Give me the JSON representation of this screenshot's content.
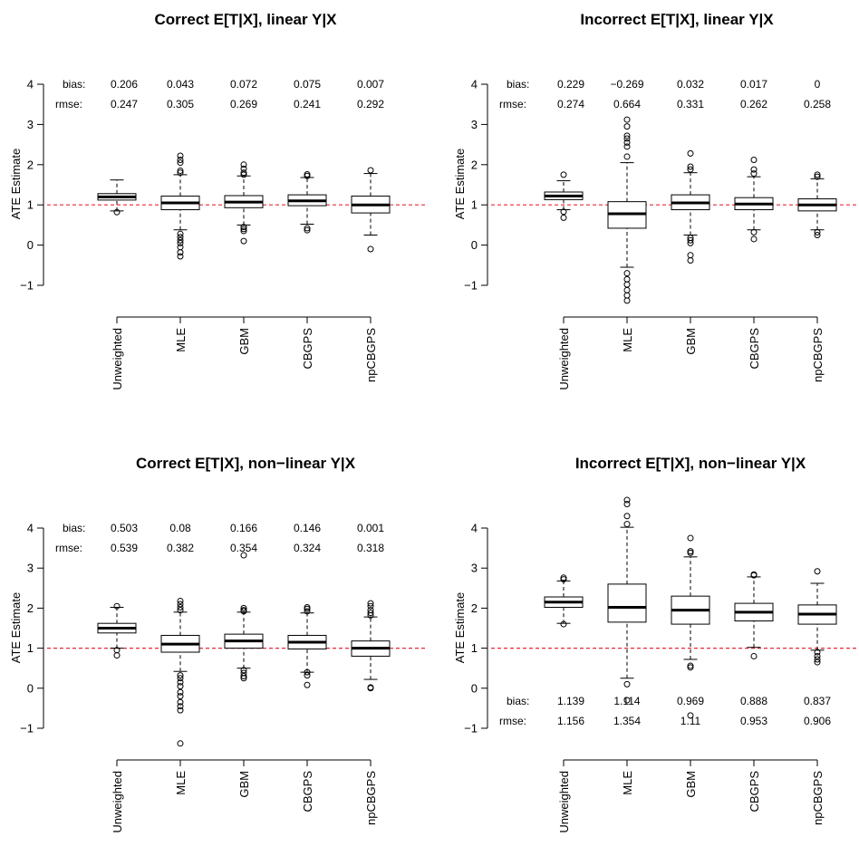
{
  "chart_data": [
    {
      "type": "box",
      "title": "Correct E[T|X], linear Y|X",
      "ylabel": "ATE Estimate",
      "ylim": [
        -1,
        4
      ],
      "yticks": [
        -1,
        0,
        1,
        2,
        3,
        4
      ],
      "reference_line": 1,
      "reference_color": "#e8283c",
      "stats_position": "top",
      "bias_label": "bias:",
      "rmse_label": "rmse:",
      "categories": [
        "Unweighted",
        "MLE",
        "GBM",
        "CBGPS",
        "npCBGPS"
      ],
      "bias": [
        "0.206",
        "0.043",
        "0.072",
        "0.075",
        "0.007"
      ],
      "rmse": [
        "0.247",
        "0.305",
        "0.269",
        "0.241",
        "0.292"
      ],
      "boxes": [
        {
          "whisker_low": 0.85,
          "q1": 1.12,
          "median": 1.2,
          "q3": 1.28,
          "whisker_high": 1.62,
          "outliers": [
            0.82
          ]
        },
        {
          "whisker_low": 0.38,
          "q1": 0.88,
          "median": 1.05,
          "q3": 1.22,
          "whisker_high": 1.75,
          "outliers": [
            -0.28,
            -0.18,
            -0.05,
            0.05,
            0.12,
            0.2,
            0.28,
            1.8,
            1.85,
            2.05,
            2.12,
            2.22
          ]
        },
        {
          "whisker_low": 0.5,
          "q1": 0.93,
          "median": 1.07,
          "q3": 1.23,
          "whisker_high": 1.72,
          "outliers": [
            0.1,
            0.35,
            0.4,
            0.45,
            1.75,
            1.8,
            1.9,
            2.0
          ]
        },
        {
          "whisker_low": 0.52,
          "q1": 0.98,
          "median": 1.1,
          "q3": 1.25,
          "whisker_high": 1.68,
          "outliers": [
            0.37,
            0.42,
            1.72,
            1.76
          ]
        },
        {
          "whisker_low": 0.25,
          "q1": 0.8,
          "median": 1.0,
          "q3": 1.22,
          "whisker_high": 1.78,
          "outliers": [
            -0.1,
            1.86
          ]
        }
      ]
    },
    {
      "type": "box",
      "title": "Incorrect E[T|X], linear Y|X",
      "ylabel": "ATE Estimate",
      "ylim": [
        -1,
        4
      ],
      "yticks": [
        -1,
        0,
        1,
        2,
        3,
        4
      ],
      "reference_line": 1,
      "reference_color": "#e8283c",
      "stats_position": "top",
      "bias_label": "bias:",
      "rmse_label": "rmse:",
      "categories": [
        "Unweighted",
        "MLE",
        "GBM",
        "CBGPS",
        "npCBGPS"
      ],
      "bias": [
        "0.229",
        "−0.269",
        "0.032",
        "0.017",
        "0"
      ],
      "rmse": [
        "0.274",
        "0.664",
        "0.331",
        "0.262",
        "0.258"
      ],
      "boxes": [
        {
          "whisker_low": 0.88,
          "q1": 1.13,
          "median": 1.22,
          "q3": 1.32,
          "whisker_high": 1.6,
          "outliers": [
            0.68,
            0.83,
            1.75
          ]
        },
        {
          "whisker_low": -0.55,
          "q1": 0.42,
          "median": 0.78,
          "q3": 1.08,
          "whisker_high": 2.05,
          "outliers": [
            -1.38,
            -1.25,
            -1.12,
            -0.98,
            -0.85,
            -0.7,
            2.2,
            2.45,
            2.55,
            2.65,
            2.72,
            2.95,
            3.12
          ]
        },
        {
          "whisker_low": 0.25,
          "q1": 0.88,
          "median": 1.05,
          "q3": 1.25,
          "whisker_high": 1.8,
          "outliers": [
            -0.38,
            -0.25,
            0.05,
            0.12,
            0.18,
            1.88,
            1.95,
            2.28
          ]
        },
        {
          "whisker_low": 0.38,
          "q1": 0.88,
          "median": 1.02,
          "q3": 1.18,
          "whisker_high": 1.7,
          "outliers": [
            0.15,
            0.32,
            1.78,
            1.88,
            2.12
          ]
        },
        {
          "whisker_low": 0.38,
          "q1": 0.85,
          "median": 1.0,
          "q3": 1.15,
          "whisker_high": 1.65,
          "outliers": [
            0.25,
            0.32,
            1.7,
            1.75
          ]
        }
      ]
    },
    {
      "type": "box",
      "title": "Correct E[T|X], non−linear Y|X",
      "ylabel": "ATE Estimate",
      "ylim": [
        -1,
        4
      ],
      "yticks": [
        -1,
        0,
        1,
        2,
        3,
        4
      ],
      "reference_line": 1,
      "reference_color": "#e8283c",
      "stats_position": "top",
      "bias_label": "bias:",
      "rmse_label": "rmse:",
      "categories": [
        "Unweighted",
        "MLE",
        "GBM",
        "CBGPS",
        "npCBGPS"
      ],
      "bias": [
        "0.503",
        "0.08",
        "0.166",
        "0.146",
        "0.001"
      ],
      "rmse": [
        "0.539",
        "0.382",
        "0.354",
        "0.324",
        "0.318"
      ],
      "boxes": [
        {
          "whisker_low": 1.0,
          "q1": 1.38,
          "median": 1.5,
          "q3": 1.62,
          "whisker_high": 2.02,
          "outliers": [
            0.82,
            0.95,
            2.05
          ]
        },
        {
          "whisker_low": 0.42,
          "q1": 0.9,
          "median": 1.1,
          "q3": 1.32,
          "whisker_high": 1.9,
          "outliers": [
            -1.38,
            -0.55,
            -0.45,
            -0.35,
            -0.2,
            -0.1,
            0.05,
            0.15,
            0.25,
            0.32,
            1.95,
            2.02,
            2.1,
            2.18
          ]
        },
        {
          "whisker_low": 0.5,
          "q1": 1.0,
          "median": 1.18,
          "q3": 1.35,
          "whisker_high": 1.9,
          "outliers": [
            0.25,
            0.3,
            0.38,
            0.45,
            1.92,
            1.95,
            2.0,
            3.32
          ]
        },
        {
          "whisker_low": 0.4,
          "q1": 0.98,
          "median": 1.15,
          "q3": 1.32,
          "whisker_high": 1.88,
          "outliers": [
            0.08,
            0.32,
            0.4,
            1.92,
            1.98,
            2.02
          ]
        },
        {
          "whisker_low": 0.22,
          "q1": 0.8,
          "median": 1.0,
          "q3": 1.18,
          "whisker_high": 1.78,
          "outliers": [
            0.0,
            0.02,
            1.82,
            1.88,
            1.95,
            2.05,
            2.12
          ]
        }
      ]
    },
    {
      "type": "box",
      "title": "Incorrect E[T|X], non−linear Y|X",
      "ylabel": "ATE Estimate",
      "ylim": [
        -1,
        4
      ],
      "yticks": [
        -1,
        0,
        1,
        2,
        3,
        4
      ],
      "reference_line": 1,
      "reference_color": "#e8283c",
      "stats_position": "bottom",
      "bias_label": "bias:",
      "rmse_label": "rmse:",
      "categories": [
        "Unweighted",
        "MLE",
        "GBM",
        "CBGPS",
        "npCBGPS"
      ],
      "bias": [
        "1.139",
        "1.114",
        "0.969",
        "0.888",
        "0.837"
      ],
      "rmse": [
        "1.156",
        "1.354",
        "1.11",
        "0.953",
        "0.906"
      ],
      "boxes": [
        {
          "whisker_low": 1.62,
          "q1": 2.02,
          "median": 2.15,
          "q3": 2.28,
          "whisker_high": 2.68,
          "outliers": [
            1.6,
            2.72,
            2.76
          ]
        },
        {
          "whisker_low": 0.25,
          "q1": 1.65,
          "median": 2.02,
          "q3": 2.6,
          "whisker_high": 4.02,
          "outliers": [
            -0.3,
            0.1,
            4.1,
            4.3,
            4.6,
            4.7
          ]
        },
        {
          "whisker_low": 0.72,
          "q1": 1.6,
          "median": 1.95,
          "q3": 2.3,
          "whisker_high": 3.28,
          "outliers": [
            -0.68,
            0.52,
            0.56,
            3.38,
            3.42,
            3.75
          ]
        },
        {
          "whisker_low": 1.02,
          "q1": 1.68,
          "median": 1.9,
          "q3": 2.12,
          "whisker_high": 2.78,
          "outliers": [
            0.8,
            2.82,
            2.84
          ]
        },
        {
          "whisker_low": 0.95,
          "q1": 1.6,
          "median": 1.85,
          "q3": 2.08,
          "whisker_high": 2.62,
          "outliers": [
            0.65,
            0.72,
            0.8,
            0.9,
            2.92
          ]
        }
      ]
    }
  ]
}
